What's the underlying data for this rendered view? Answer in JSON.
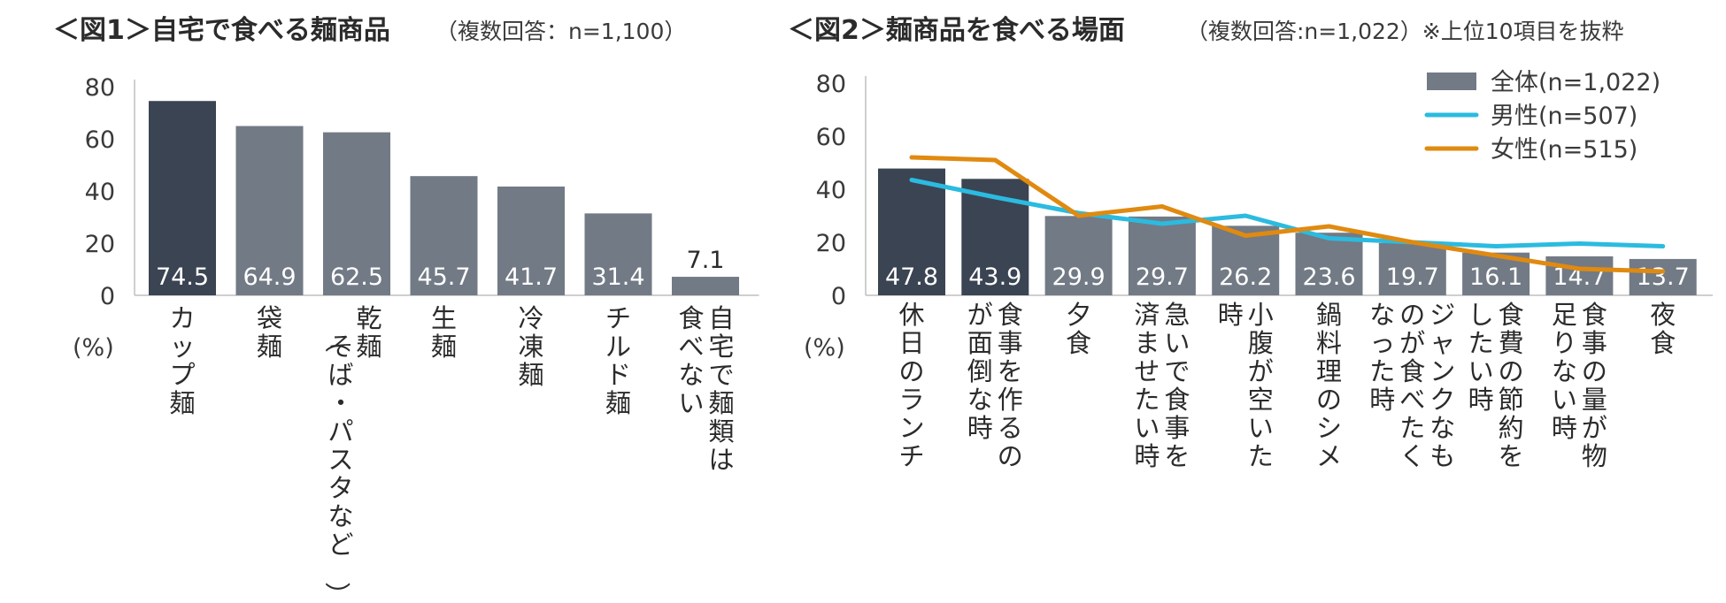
{
  "chart_data": [
    {
      "type": "bar",
      "title": "＜図1＞自宅で食べる麺商品",
      "subtitle": "（複数回答：n=1,100）",
      "unit_label": "(%)",
      "ylim": [
        0,
        80
      ],
      "yticks": [
        "0",
        "20",
        "40",
        "60",
        "80"
      ],
      "categories": [
        "カップ麺",
        "袋麺",
        "乾麺（そば・パスタなど）",
        "生麺",
        "冷凍麺",
        "チルド麺",
        "自宅で麺類は食べない"
      ],
      "values": [
        74.5,
        64.9,
        62.5,
        45.7,
        41.7,
        31.4,
        7.1
      ],
      "value_labels": [
        "74.5",
        "64.9",
        "62.5",
        "45.7",
        "41.7",
        "31.4",
        "7.1"
      ],
      "highlight_index": 0,
      "colors": {
        "highlight": "#3b4453",
        "normal": "#727a85"
      }
    },
    {
      "type": "bar",
      "title": "＜図2＞麺商品を食べる場面",
      "subtitle": "（複数回答:n=1,022）※上位10項目を抜粋",
      "unit_label": "(%)",
      "ylim": [
        0,
        80
      ],
      "yticks": [
        "0",
        "20",
        "40",
        "60",
        "80"
      ],
      "categories": [
        "休日のランチ",
        "食事を作るのが面倒な時",
        "夕食",
        "急いで食事を済ませたい時",
        "小腹が空いた時",
        "鍋料理のシメ",
        "ジャンクなものが食べたくなった時",
        "食費の節約をしたい時",
        "食事の量が物足りない時",
        "夜食"
      ],
      "highlight_indices": [
        0,
        1
      ],
      "series": [
        {
          "name": "全体(n=1,022)",
          "kind": "bar",
          "color": "#727a85",
          "values": [
            47.8,
            43.9,
            29.9,
            29.7,
            26.2,
            23.6,
            19.7,
            16.1,
            14.7,
            13.7
          ],
          "value_labels": [
            "47.8",
            "43.9",
            "29.9",
            "29.7",
            "26.2",
            "23.6",
            "19.7",
            "16.1",
            "14.7",
            "13.7"
          ]
        },
        {
          "name": "男性(n=507)",
          "kind": "line",
          "color": "#2bbbe0",
          "values": [
            43.5,
            37,
            31,
            27,
            30,
            21.5,
            20,
            18.5,
            19.5,
            18.5
          ]
        },
        {
          "name": "女性(n=515)",
          "kind": "line",
          "color": "#e08a10",
          "values": [
            52,
            51,
            30,
            33.5,
            22.5,
            26,
            20,
            15,
            10,
            9
          ]
        }
      ],
      "legend_position": "top-right",
      "colors": {
        "highlight": "#3b4453",
        "normal": "#727a85"
      }
    }
  ]
}
